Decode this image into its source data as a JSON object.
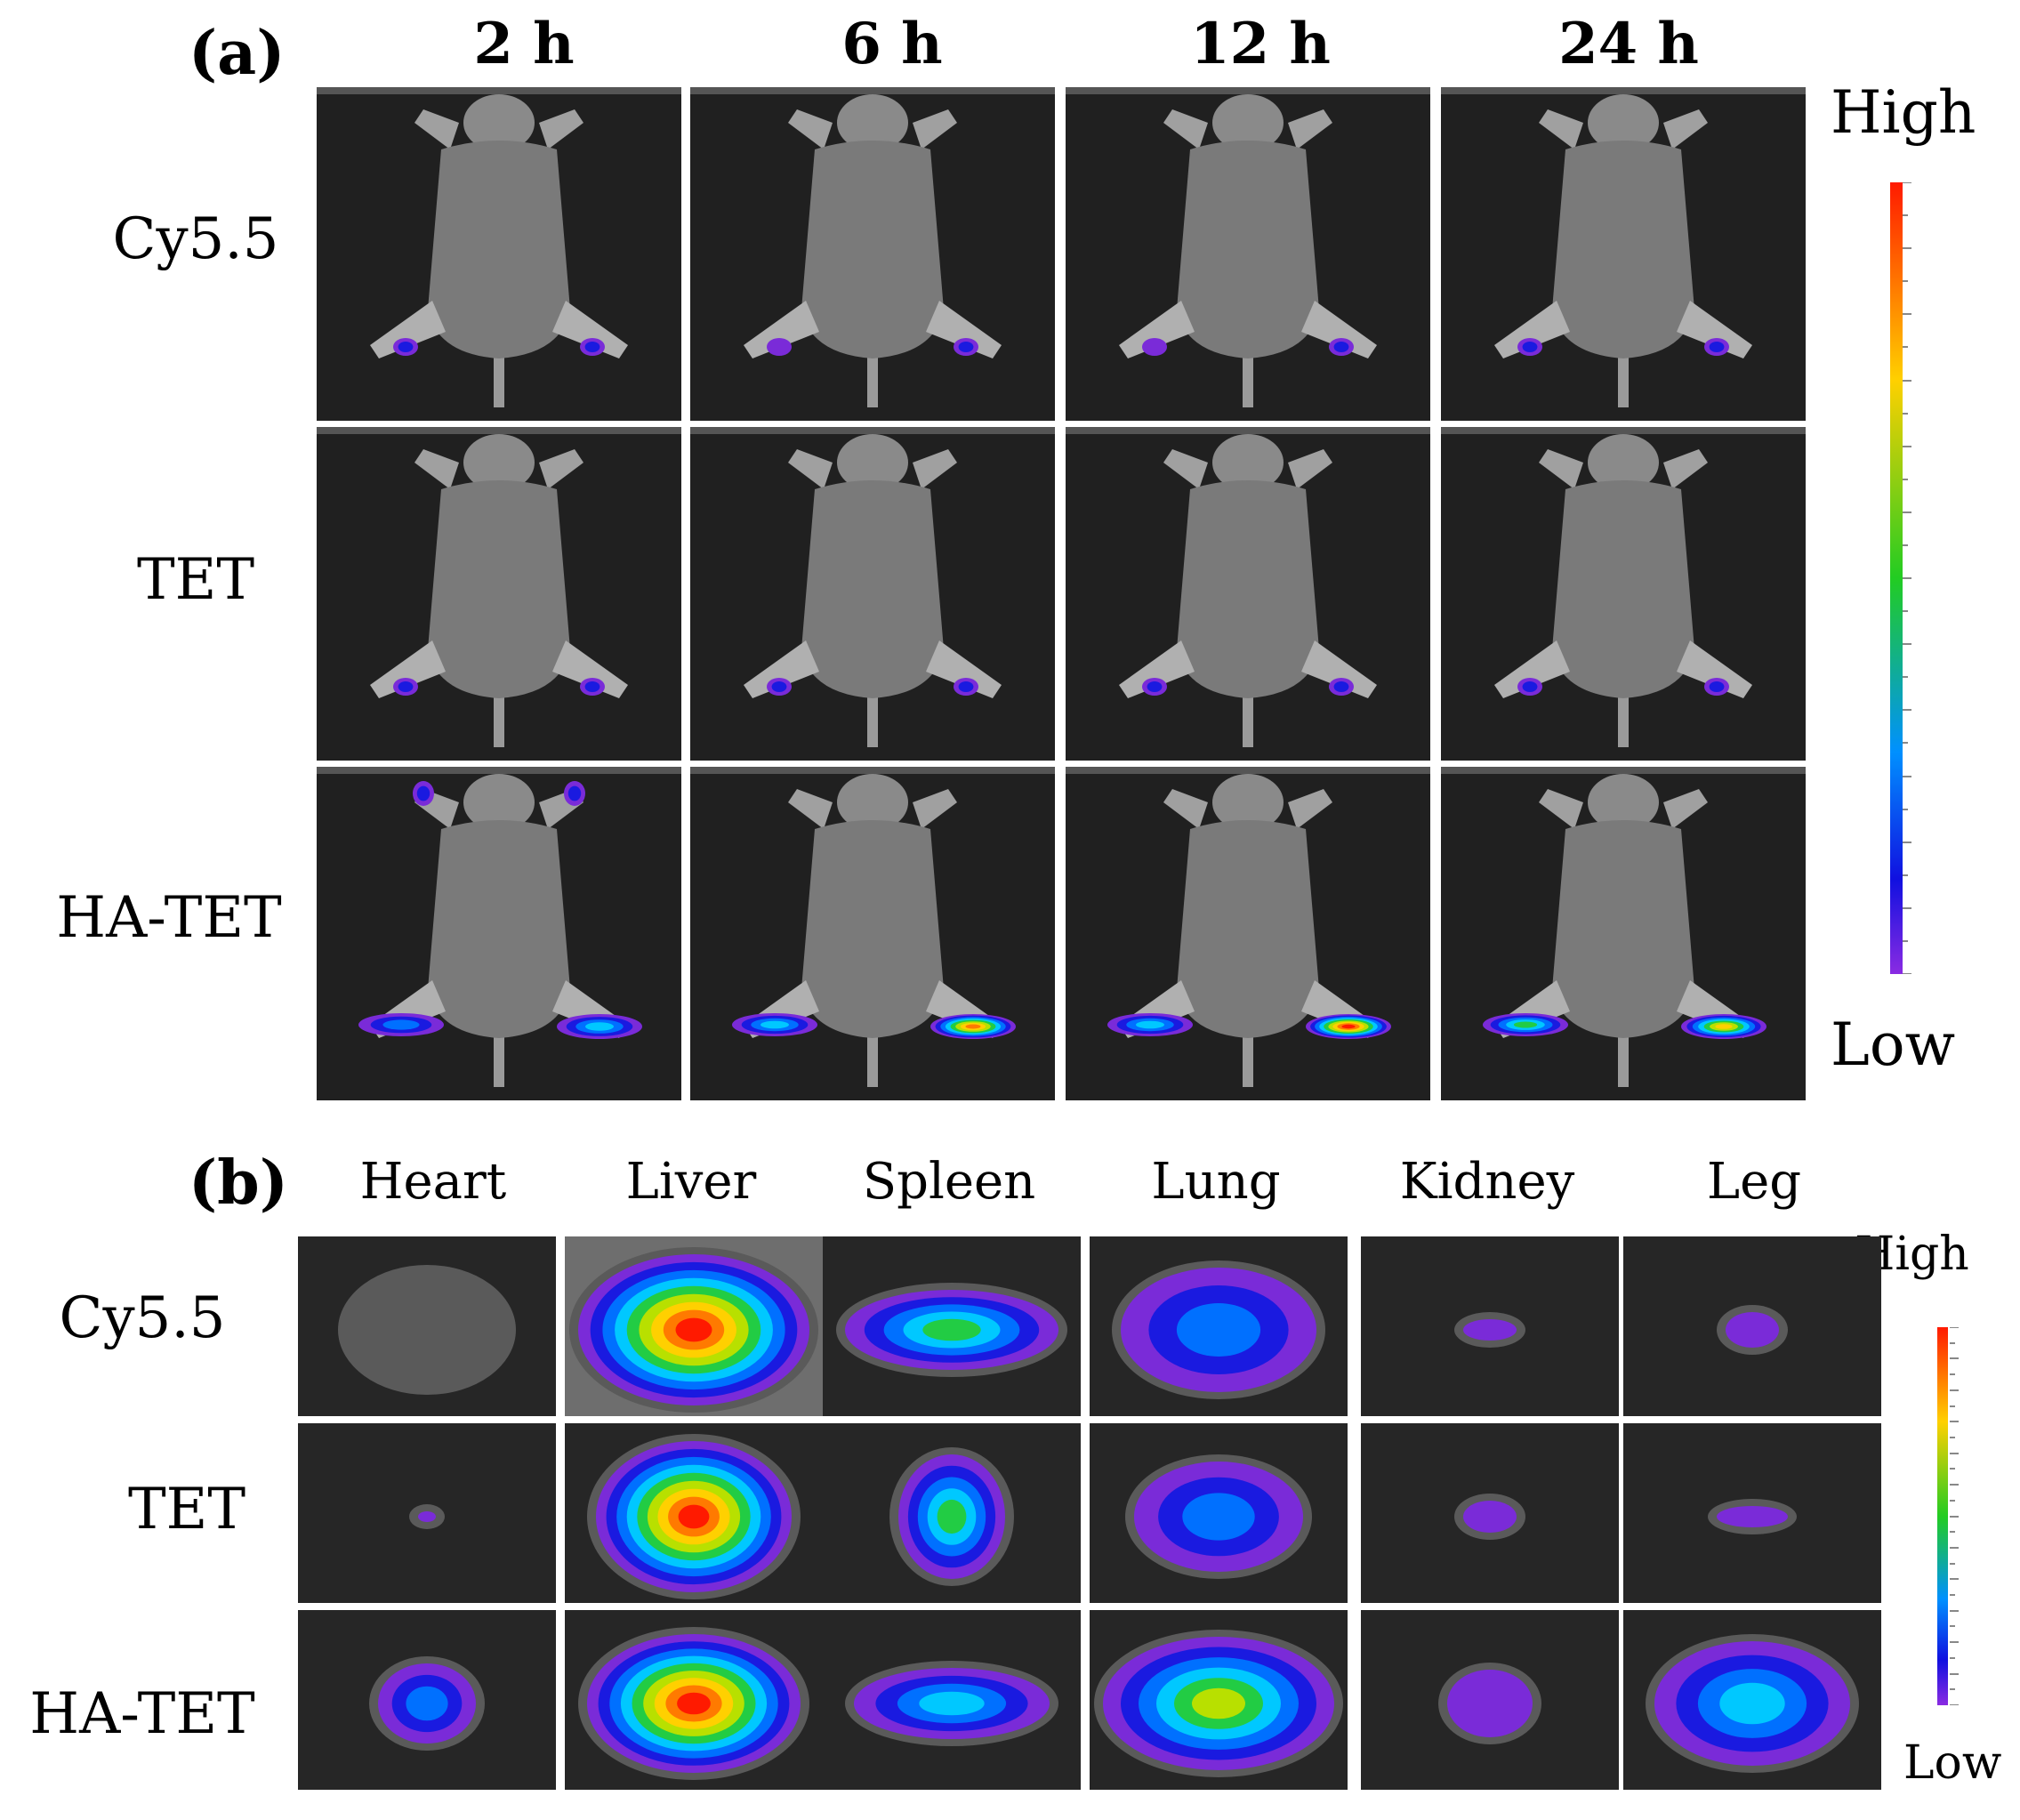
{
  "panel_a": {
    "letter": "(a)",
    "columns": [
      "2 h",
      "6 h",
      "12 h",
      "24 h"
    ],
    "rows": [
      "Cy5.5",
      "TET",
      "HA-TET"
    ],
    "scale_high": "High",
    "scale_low": "Low"
  },
  "panel_b": {
    "letter": "(b)",
    "columns": [
      "Heart",
      "Liver",
      "Spleen",
      "Lung",
      "Kidney",
      "Leg"
    ],
    "rows": [
      "Cy5.5",
      "TET",
      "HA-TET"
    ],
    "scale_high": "High",
    "scale_low": "Low"
  },
  "colors": {
    "scale_top": "#ff1a00",
    "scale_upper": "#ffd000",
    "scale_mid": "#22cc22",
    "scale_lower": "#0080ff",
    "scale_bottom": "#8a2be2"
  }
}
